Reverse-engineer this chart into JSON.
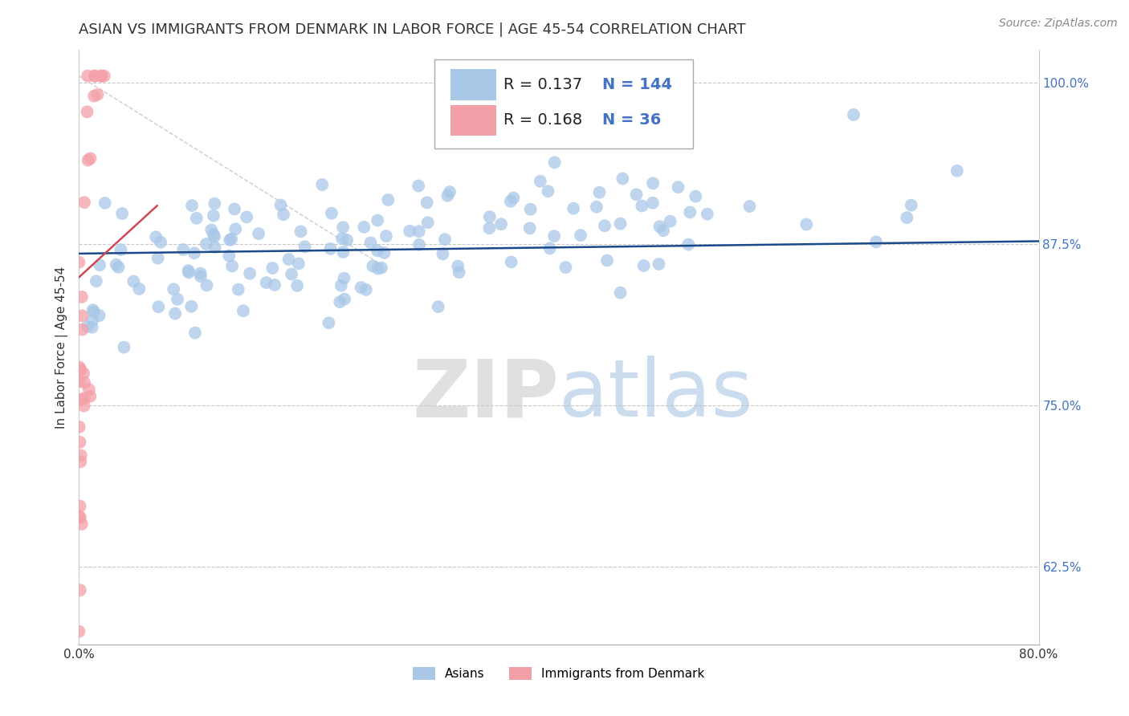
{
  "title": "ASIAN VS IMMIGRANTS FROM DENMARK IN LABOR FORCE | AGE 45-54 CORRELATION CHART",
  "source": "Source: ZipAtlas.com",
  "ylabel": "In Labor Force | Age 45-54",
  "xlim": [
    0.0,
    0.8
  ],
  "ylim": [
    0.565,
    1.025
  ],
  "xticks": [
    0.0,
    0.1,
    0.2,
    0.3,
    0.4,
    0.5,
    0.6,
    0.7,
    0.8
  ],
  "xticklabels": [
    "0.0%",
    "",
    "",
    "",
    "",
    "",
    "",
    "",
    "80.0%"
  ],
  "yticks": [
    0.625,
    0.75,
    0.875,
    1.0
  ],
  "yticklabels": [
    "62.5%",
    "75.0%",
    "87.5%",
    "100.0%"
  ],
  "blue_color": "#A8C8E8",
  "pink_color": "#F4A0A8",
  "trend_blue": "#1A4A8A",
  "trend_pink": "#D04858",
  "R_blue": 0.137,
  "N_blue": 144,
  "R_pink": 0.168,
  "N_pink": 36,
  "watermark_zip": "#C8C8C8",
  "watermark_atlas": "#A0C0E0",
  "grid_color": "#C8C8C8",
  "background_color": "#FFFFFF",
  "title_fontsize": 13,
  "axis_label_fontsize": 11,
  "tick_fontsize": 11,
  "source_fontsize": 10,
  "legend_fontsize": 14
}
